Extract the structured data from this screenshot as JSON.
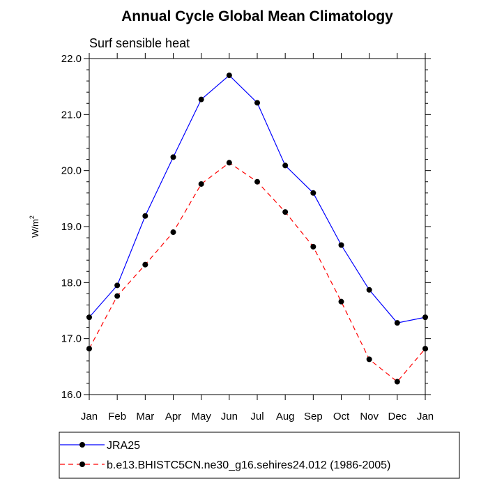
{
  "chart_data": {
    "type": "line",
    "title": "Annual Cycle Global Mean Climatology",
    "subtitle": "Surf sensible heat",
    "ylabel_base": "W/m",
    "ylabel_sup": "2",
    "xlabel": "",
    "categories": [
      "Jan",
      "Feb",
      "Mar",
      "Apr",
      "May",
      "Jun",
      "Jul",
      "Aug",
      "Sep",
      "Oct",
      "Nov",
      "Dec",
      "Jan"
    ],
    "yticks": [
      "16.0",
      "17.0",
      "18.0",
      "19.0",
      "20.0",
      "21.0",
      "22.0"
    ],
    "ylim": [
      16.0,
      22.0
    ],
    "grid": false,
    "legend_position": "bottom",
    "series": [
      {
        "name": "JRA25",
        "color": "#0000ff",
        "dash": "solid",
        "values": [
          17.38,
          17.95,
          19.19,
          20.24,
          21.27,
          21.7,
          21.21,
          20.09,
          19.6,
          18.67,
          17.87,
          17.28,
          17.38
        ]
      },
      {
        "name": "b.e13.BHISTC5CN.ne30_g16.sehires24.012 (1986-2005)",
        "color": "#ff0000",
        "dash": "dashed",
        "values": [
          16.82,
          17.76,
          18.32,
          18.9,
          19.76,
          20.14,
          19.8,
          19.26,
          18.64,
          17.66,
          16.63,
          16.23,
          16.82
        ]
      }
    ]
  }
}
